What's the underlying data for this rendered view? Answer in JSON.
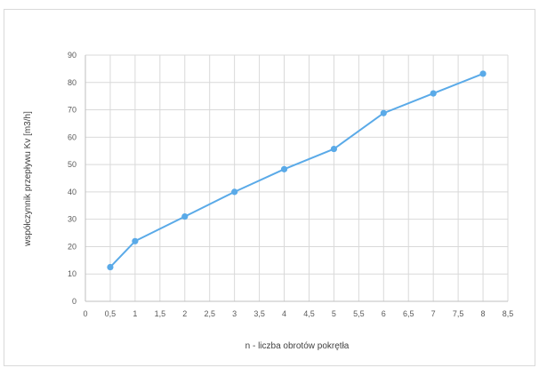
{
  "chart_data": {
    "type": "line",
    "title": "",
    "xlabel": "n - liczba obrotów pokrętła",
    "ylabel": "współczynnik przepływu Kv [m3/h]",
    "xlim": [
      0,
      8.5
    ],
    "ylim": [
      0,
      90
    ],
    "x_ticks": [
      "0",
      "0,5",
      "1",
      "1,5",
      "2",
      "2,5",
      "3",
      "3,5",
      "4",
      "4,5",
      "5",
      "5,5",
      "6",
      "6,5",
      "7",
      "7,5",
      "8",
      "8,5"
    ],
    "x_tick_values": [
      0,
      0.5,
      1,
      1.5,
      2,
      2.5,
      3,
      3.5,
      4,
      4.5,
      5,
      5.5,
      6,
      6.5,
      7,
      7.5,
      8,
      8.5
    ],
    "y_ticks": [
      "0",
      "10",
      "20",
      "30",
      "40",
      "50",
      "60",
      "70",
      "80",
      "90"
    ],
    "y_tick_values": [
      0,
      10,
      20,
      30,
      40,
      50,
      60,
      70,
      80,
      90
    ],
    "grid": true,
    "series": [
      {
        "x": [
          0.5,
          1,
          2,
          3,
          4,
          5,
          6,
          7,
          8
        ],
        "y": [
          12.5,
          22,
          31,
          40,
          48.3,
          55.7,
          68.8,
          76,
          83.2
        ],
        "color": "#5aaae8"
      }
    ]
  }
}
